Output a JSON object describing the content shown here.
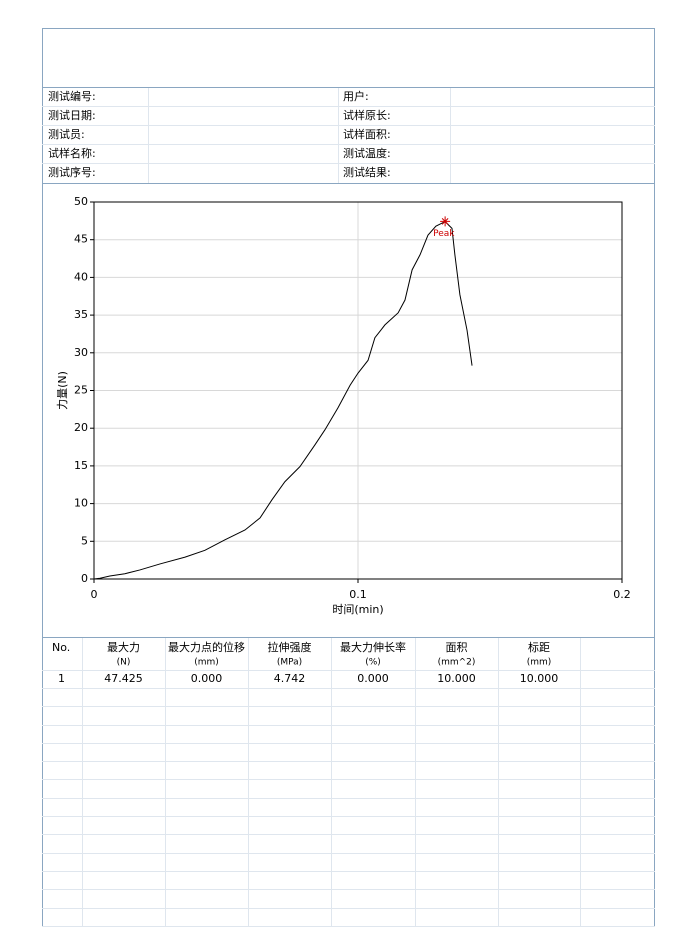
{
  "info": {
    "left": [
      "测试编号:",
      "测试日期:",
      "测试员:",
      "试样名称:",
      "测试序号:"
    ],
    "right": [
      "用户:",
      "试样原长:",
      "试样面积:",
      "测试温度:",
      "测试结果:"
    ]
  },
  "chart_data": {
    "type": "line",
    "x_label": "时间(min)",
    "y_label": "力量(N)",
    "x": [
      0,
      0.0023,
      0.006,
      0.0117,
      0.0174,
      0.025,
      0.0345,
      0.042,
      0.0496,
      0.0572,
      0.0629,
      0.0674,
      0.0723,
      0.078,
      0.0837,
      0.0875,
      0.0924,
      0.097,
      0.1,
      0.1038,
      0.1064,
      0.1102,
      0.1152,
      0.1178,
      0.1205,
      0.1235,
      0.1265,
      0.1295,
      0.133,
      0.1356,
      0.1367,
      0.1386,
      0.1413,
      0.1432
    ],
    "series": [
      {
        "color": "#000000",
        "values": [
          0,
          0.1,
          0.4,
          0.7,
          1.2,
          2.0,
          2.9,
          3.8,
          5.2,
          6.5,
          8.1,
          10.5,
          12.9,
          14.9,
          17.8,
          19.8,
          22.7,
          25.7,
          27.3,
          29,
          32,
          33.7,
          35.3,
          37,
          41,
          43,
          45.6,
          46.8,
          47.4,
          46.5,
          43,
          37.7,
          33,
          28.3
        ]
      }
    ],
    "peak": {
      "x": 0.133,
      "y": 47.425,
      "label": "Peak",
      "color": "#cc0000"
    },
    "xlim": [
      0,
      0.2
    ],
    "xticks": [
      0,
      0.1,
      0.2
    ],
    "ylim": [
      0,
      50
    ],
    "yticks": [
      0,
      5,
      10,
      15,
      20,
      25,
      30,
      35,
      40,
      45,
      50
    ],
    "grid": true
  },
  "results": {
    "columns": [
      {
        "name": "No."
      },
      {
        "name": "最大力",
        "unit": "(N)"
      },
      {
        "name": "最大力点的位移",
        "unit": "(mm)"
      },
      {
        "name": "拉伸强度",
        "unit": "(MPa)"
      },
      {
        "name": "最大力伸长率",
        "unit": "(%)"
      },
      {
        "name": "面积",
        "unit": "(mm^2)"
      },
      {
        "name": "标距",
        "unit": "(mm)"
      }
    ],
    "rows": [
      [
        "1",
        "47.425",
        "0.000",
        "4.742",
        "0.000",
        "10.000",
        "10.000"
      ]
    ]
  }
}
